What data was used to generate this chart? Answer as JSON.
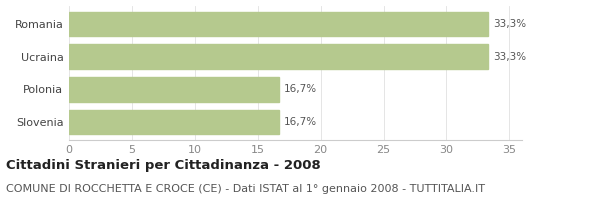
{
  "categories": [
    "Romania",
    "Ucraina",
    "Polonia",
    "Slovenia"
  ],
  "values": [
    33.3,
    33.3,
    16.7,
    16.7
  ],
  "labels": [
    "33,3%",
    "33,3%",
    "16,7%",
    "16,7%"
  ],
  "bar_color": "#b5c98e",
  "xlim": [
    0,
    36
  ],
  "xticks": [
    0,
    5,
    10,
    15,
    20,
    25,
    30,
    35
  ],
  "title": "Cittadini Stranieri per Cittadinanza - 2008",
  "subtitle": "COMUNE DI ROCCHETTA E CROCE (CE) - Dati ISTAT al 1° gennaio 2008 - TUTTITALIA.IT",
  "title_fontsize": 9.5,
  "subtitle_fontsize": 8,
  "label_fontsize": 7.5,
  "tick_fontsize": 8,
  "category_fontsize": 8,
  "background_color": "#ffffff",
  "bar_height": 0.75
}
